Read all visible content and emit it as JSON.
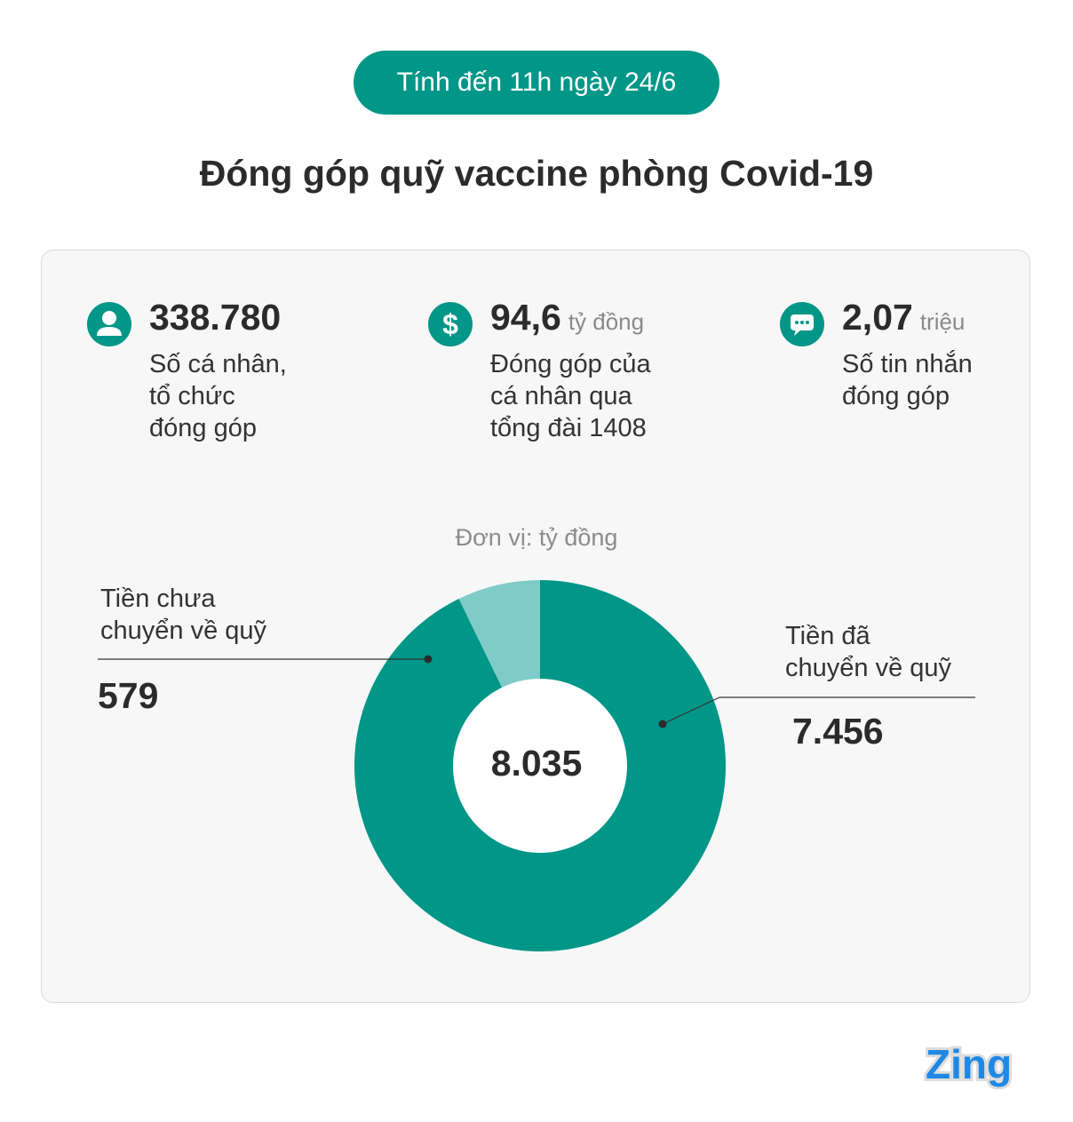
{
  "header": {
    "date_label": "Tính đến 11h ngày 24/6",
    "title": "Đóng góp quỹ vaccine phòng Covid-19"
  },
  "stats": [
    {
      "icon": "person-icon",
      "value": "338.780",
      "unit": "",
      "desc": [
        "Số cá nhân,",
        "tổ chức",
        "đóng góp"
      ]
    },
    {
      "icon": "dollar-icon",
      "value": "94,6",
      "unit": "tỷ đồng",
      "desc": [
        "Đóng góp của",
        "cá nhân qua",
        "tổng đài 1408"
      ]
    },
    {
      "icon": "message-icon",
      "value": "2,07",
      "unit": "triệu",
      "desc": [
        "Số tin nhắn",
        "đóng góp"
      ]
    }
  ],
  "colors": {
    "accent": "#009688",
    "light": "#7ecbc8"
  },
  "chart_data": {
    "type": "pie",
    "title": "",
    "unit_label": "Đơn vị: tỷ đồng",
    "total_label": "8.035",
    "total": 8035,
    "slices": [
      {
        "name_lines": [
          "Tiền đã",
          "chuyển về quỹ"
        ],
        "value": 7456,
        "value_label": "7.456",
        "color": "#009688"
      },
      {
        "name_lines": [
          "Tiền chưa",
          "chuyển về quỹ"
        ],
        "value": 579,
        "value_label": "579",
        "color": "#7ecbc8"
      }
    ]
  },
  "logo": {
    "text": "Zing"
  }
}
